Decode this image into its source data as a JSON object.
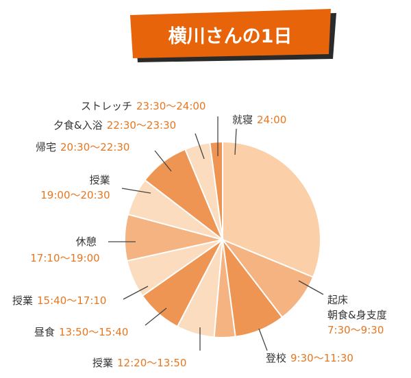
{
  "title": "横川さんの1日",
  "colors": {
    "banner": "#e8640a",
    "banner_shadow": "#2a2a2a",
    "name_text": "#333333",
    "time_text": "#e8761e",
    "leader": "#444444"
  },
  "chart_data": {
    "type": "pie",
    "total_hours": 24,
    "start_clock": "24:00",
    "slices": [
      {
        "label": "就寝",
        "time": "24:00",
        "start": 0,
        "end": 7.5,
        "color": "#fbd0a8"
      },
      {
        "label": "起床\n朝食&身支度",
        "time": "7:30〜9:30",
        "start": 7.5,
        "end": 9.5,
        "color": "#f4b380"
      },
      {
        "label": "登校",
        "time": "9:30〜11:30",
        "start": 9.5,
        "end": 11.5,
        "color": "#ef9554"
      },
      {
        "label": "",
        "time": "",
        "start": 11.5,
        "end": 12.333,
        "color": "#f4b380"
      },
      {
        "label": "授業",
        "time": "12:20〜13:50",
        "start": 12.333,
        "end": 13.833,
        "color": "#fbdcbe"
      },
      {
        "label": "昼食",
        "time": "13:50〜15:40",
        "start": 13.833,
        "end": 15.667,
        "color": "#ef9554"
      },
      {
        "label": "授業",
        "time": "15:40〜17:10",
        "start": 15.667,
        "end": 17.167,
        "color": "#fbdcbe"
      },
      {
        "label": "休憩",
        "time": "17:10〜19:00",
        "start": 17.167,
        "end": 19.0,
        "color": "#f4b380"
      },
      {
        "label": "授業",
        "time": "19:00〜20:30",
        "start": 19.0,
        "end": 20.5,
        "color": "#fbdcbe"
      },
      {
        "label": "帰宅",
        "time": "20:30〜22:30",
        "start": 20.5,
        "end": 22.5,
        "color": "#ef9554"
      },
      {
        "label": "夕食&入浴",
        "time": "22:30〜23:30",
        "start": 22.5,
        "end": 23.5,
        "color": "#fbdcbe"
      },
      {
        "label": "ストレッチ",
        "time": "23:30〜24:00",
        "start": 23.5,
        "end": 24.0,
        "color": "#ef9554"
      }
    ]
  }
}
